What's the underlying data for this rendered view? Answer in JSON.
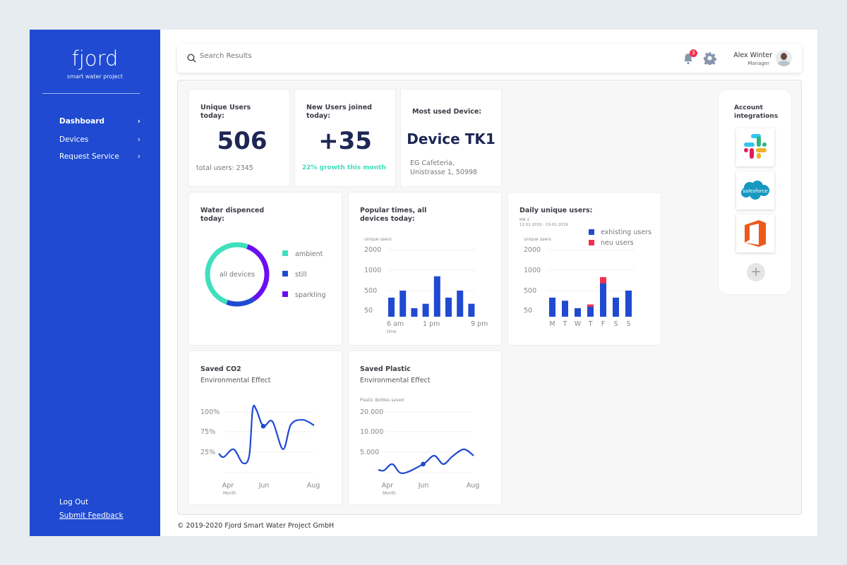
{
  "sidebar": {
    "logo": "fjord",
    "logo_sub": "smart water project",
    "items": [
      {
        "label": "Dashboard",
        "active": true
      },
      {
        "label": "Devices"
      },
      {
        "label": "Request Service"
      }
    ],
    "log_out": "Log Out",
    "submit_feedback": "Submit Feedback"
  },
  "header": {
    "search_placeholder": "Search Results",
    "notification_count": "3",
    "user_name": "Alex Winter",
    "user_role": "Manager"
  },
  "cards": {
    "unique_users": {
      "title": "Unique Users today:",
      "value": "506",
      "footer": "total users: 2345"
    },
    "new_users": {
      "title": "New Users joined today:",
      "value": "+35",
      "footer": "22% growth this month"
    },
    "device": {
      "title": "Most used Device:",
      "value": "Device TK1",
      "line1": "EG Cafeteria,",
      "line2": "Unistrasse 1, 50998"
    },
    "water": {
      "title": "Water dispenced today:",
      "center": "all devices"
    },
    "popular": {
      "title": "Popular times, all devices today:"
    },
    "daily": {
      "title": "Daily unique users:",
      "kw": "KW 2",
      "range": "12.01.2019 - 19.01.2019"
    },
    "co2": {
      "title": "Saved CO2",
      "subtitle": "Environmental Effect"
    },
    "plastic": {
      "title": "Saved Plastic",
      "subtitle": "Environmental Effect"
    }
  },
  "integrations": {
    "title": "Account integrations",
    "items": [
      "slack",
      "salesforce",
      "office"
    ],
    "salesforce_text": "salesforce"
  },
  "footer": "© 2019-2020 Fjord Smart Water Project GmbH",
  "colors": {
    "brand": "#1f4ad1",
    "teal": "#3ee0bd",
    "purple": "#6a0ff0",
    "red": "#f2304f",
    "navy": "#1d2654"
  },
  "chart_data": [
    {
      "type": "pie",
      "donut": true,
      "labels": [
        "ambient",
        "still",
        "sparkling"
      ],
      "values": [
        50,
        15,
        35
      ],
      "colors": [
        "#3ee0bd",
        "#1f4ad1",
        "#6a0ff0"
      ]
    },
    {
      "type": "bar",
      "ylabel": "unique users",
      "xlabel": "time",
      "yticks": [
        50,
        500,
        1000,
        2000
      ],
      "xtick_labels": [
        "6 am",
        "1 pm",
        "9 pm"
      ],
      "values": [
        340,
        500,
        100,
        200,
        850,
        340,
        500,
        200
      ]
    },
    {
      "type": "bar",
      "stacked": true,
      "ylabel": "unique users",
      "yticks": [
        50,
        500,
        1000,
        2000
      ],
      "legend": "top-right",
      "categories": [
        "M",
        "T",
        "W",
        "T",
        "F",
        "S",
        "S"
      ],
      "series": [
        {
          "name": "exhisting users",
          "color": "#1f4ad1",
          "values": [
            340,
            270,
            100,
            130,
            680,
            340,
            500
          ]
        },
        {
          "name": "neu users",
          "color": "#f2304f",
          "values": [
            0,
            0,
            0,
            55,
            150,
            0,
            0
          ]
        }
      ]
    },
    {
      "type": "line",
      "xlabel": "Month",
      "xtick_labels": [
        "Apr",
        "Jun",
        "Aug"
      ],
      "yticks": [
        "25%",
        "75%",
        "100%"
      ],
      "x": [
        3.49,
        3.76,
        4.31,
        4.82,
        5.18,
        5.37,
        5.57,
        5.96,
        6.34,
        6.77,
        7.09,
        7.57,
        8.03
      ],
      "y": [
        22,
        15,
        32,
        3,
        18,
        103,
        103,
        82,
        88,
        32,
        84,
        90,
        83
      ],
      "marker_index": 7
    },
    {
      "type": "line",
      "ylabel": "Plastic Bottles saved",
      "xlabel": "Month",
      "xtick_labels": [
        "Apr",
        "Jun",
        "Aug"
      ],
      "yticks": [
        "5.000",
        "10.000",
        "20.000"
      ],
      "x": [
        3.49,
        3.8,
        4.27,
        4.82,
        5.98,
        6.43,
        6.8,
        7.17,
        7.63,
        8.03
      ],
      "y": [
        830,
        670,
        2170,
        0,
        2170,
        4170,
        2170,
        4000,
        5690,
        4170
      ],
      "marker_index": 4
    }
  ]
}
